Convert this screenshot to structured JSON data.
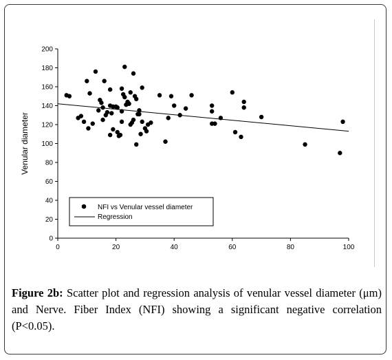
{
  "chart_data": {
    "type": "scatter",
    "ylabel": "Venular diameter",
    "xlabel": "",
    "xlim": [
      0,
      100
    ],
    "ylim": [
      0,
      200
    ],
    "xticks": [
      0,
      20,
      40,
      60,
      80,
      100
    ],
    "yticks": [
      0,
      20,
      40,
      60,
      80,
      100,
      120,
      140,
      160,
      180,
      200
    ],
    "grid": false,
    "legend_position": "bottom-left",
    "series": [
      {
        "name": "NFI vs Venular vessel diameter",
        "kind": "points",
        "color": "#000000",
        "points": [
          [
            3,
            151
          ],
          [
            4,
            150
          ],
          [
            7,
            127
          ],
          [
            8,
            129
          ],
          [
            9,
            123
          ],
          [
            10,
            166
          ],
          [
            10.5,
            116
          ],
          [
            11,
            153
          ],
          [
            12,
            121
          ],
          [
            13,
            176
          ],
          [
            14,
            135
          ],
          [
            14.5,
            146
          ],
          [
            15,
            143
          ],
          [
            15.5,
            138
          ],
          [
            15.5,
            125
          ],
          [
            16,
            166
          ],
          [
            16.5,
            130
          ],
          [
            17,
            133
          ],
          [
            18,
            157
          ],
          [
            18,
            140
          ],
          [
            18,
            109
          ],
          [
            18.5,
            132
          ],
          [
            19,
            139
          ],
          [
            19,
            115
          ],
          [
            20,
            139
          ],
          [
            20.5,
            138
          ],
          [
            20.5,
            112
          ],
          [
            21,
            108
          ],
          [
            21.5,
            109
          ],
          [
            22,
            158
          ],
          [
            22,
            134
          ],
          [
            22,
            123
          ],
          [
            22.5,
            152
          ],
          [
            23,
            181
          ],
          [
            23,
            149
          ],
          [
            23.5,
            141
          ],
          [
            24,
            144
          ],
          [
            24.5,
            142
          ],
          [
            25,
            154
          ],
          [
            25,
            120
          ],
          [
            25.5,
            122
          ],
          [
            26,
            174
          ],
          [
            26,
            125
          ],
          [
            26.5,
            150
          ],
          [
            27,
            147
          ],
          [
            27,
            99
          ],
          [
            27.5,
            131
          ],
          [
            28,
            135
          ],
          [
            28,
            131
          ],
          [
            28.5,
            110
          ],
          [
            29,
            159
          ],
          [
            29,
            123
          ],
          [
            30,
            116
          ],
          [
            30.5,
            113
          ],
          [
            31,
            120
          ],
          [
            32,
            122
          ],
          [
            35,
            151
          ],
          [
            37,
            102
          ],
          [
            38,
            127
          ],
          [
            39,
            150
          ],
          [
            40,
            140
          ],
          [
            42,
            130
          ],
          [
            44,
            137
          ],
          [
            46,
            151
          ],
          [
            53,
            140
          ],
          [
            53,
            134
          ],
          [
            53,
            121
          ],
          [
            54,
            121
          ],
          [
            56,
            127
          ],
          [
            60,
            154
          ],
          [
            61,
            112
          ],
          [
            63,
            107
          ],
          [
            64,
            144
          ],
          [
            64,
            138
          ],
          [
            70,
            128
          ],
          [
            85,
            99
          ],
          [
            97,
            90
          ],
          [
            98,
            123
          ]
        ]
      },
      {
        "name": "Regression",
        "kind": "line",
        "color": "#000000",
        "x": [
          0,
          100
        ],
        "y": [
          142,
          113
        ]
      }
    ]
  },
  "caption": {
    "label": "Figure 2b:",
    "text": " Scatter plot and regression analysis of venular vessel diameter (μm) and Nerve. Fiber Index (NFI) showing a significant negative correlation (P<0.05)."
  }
}
